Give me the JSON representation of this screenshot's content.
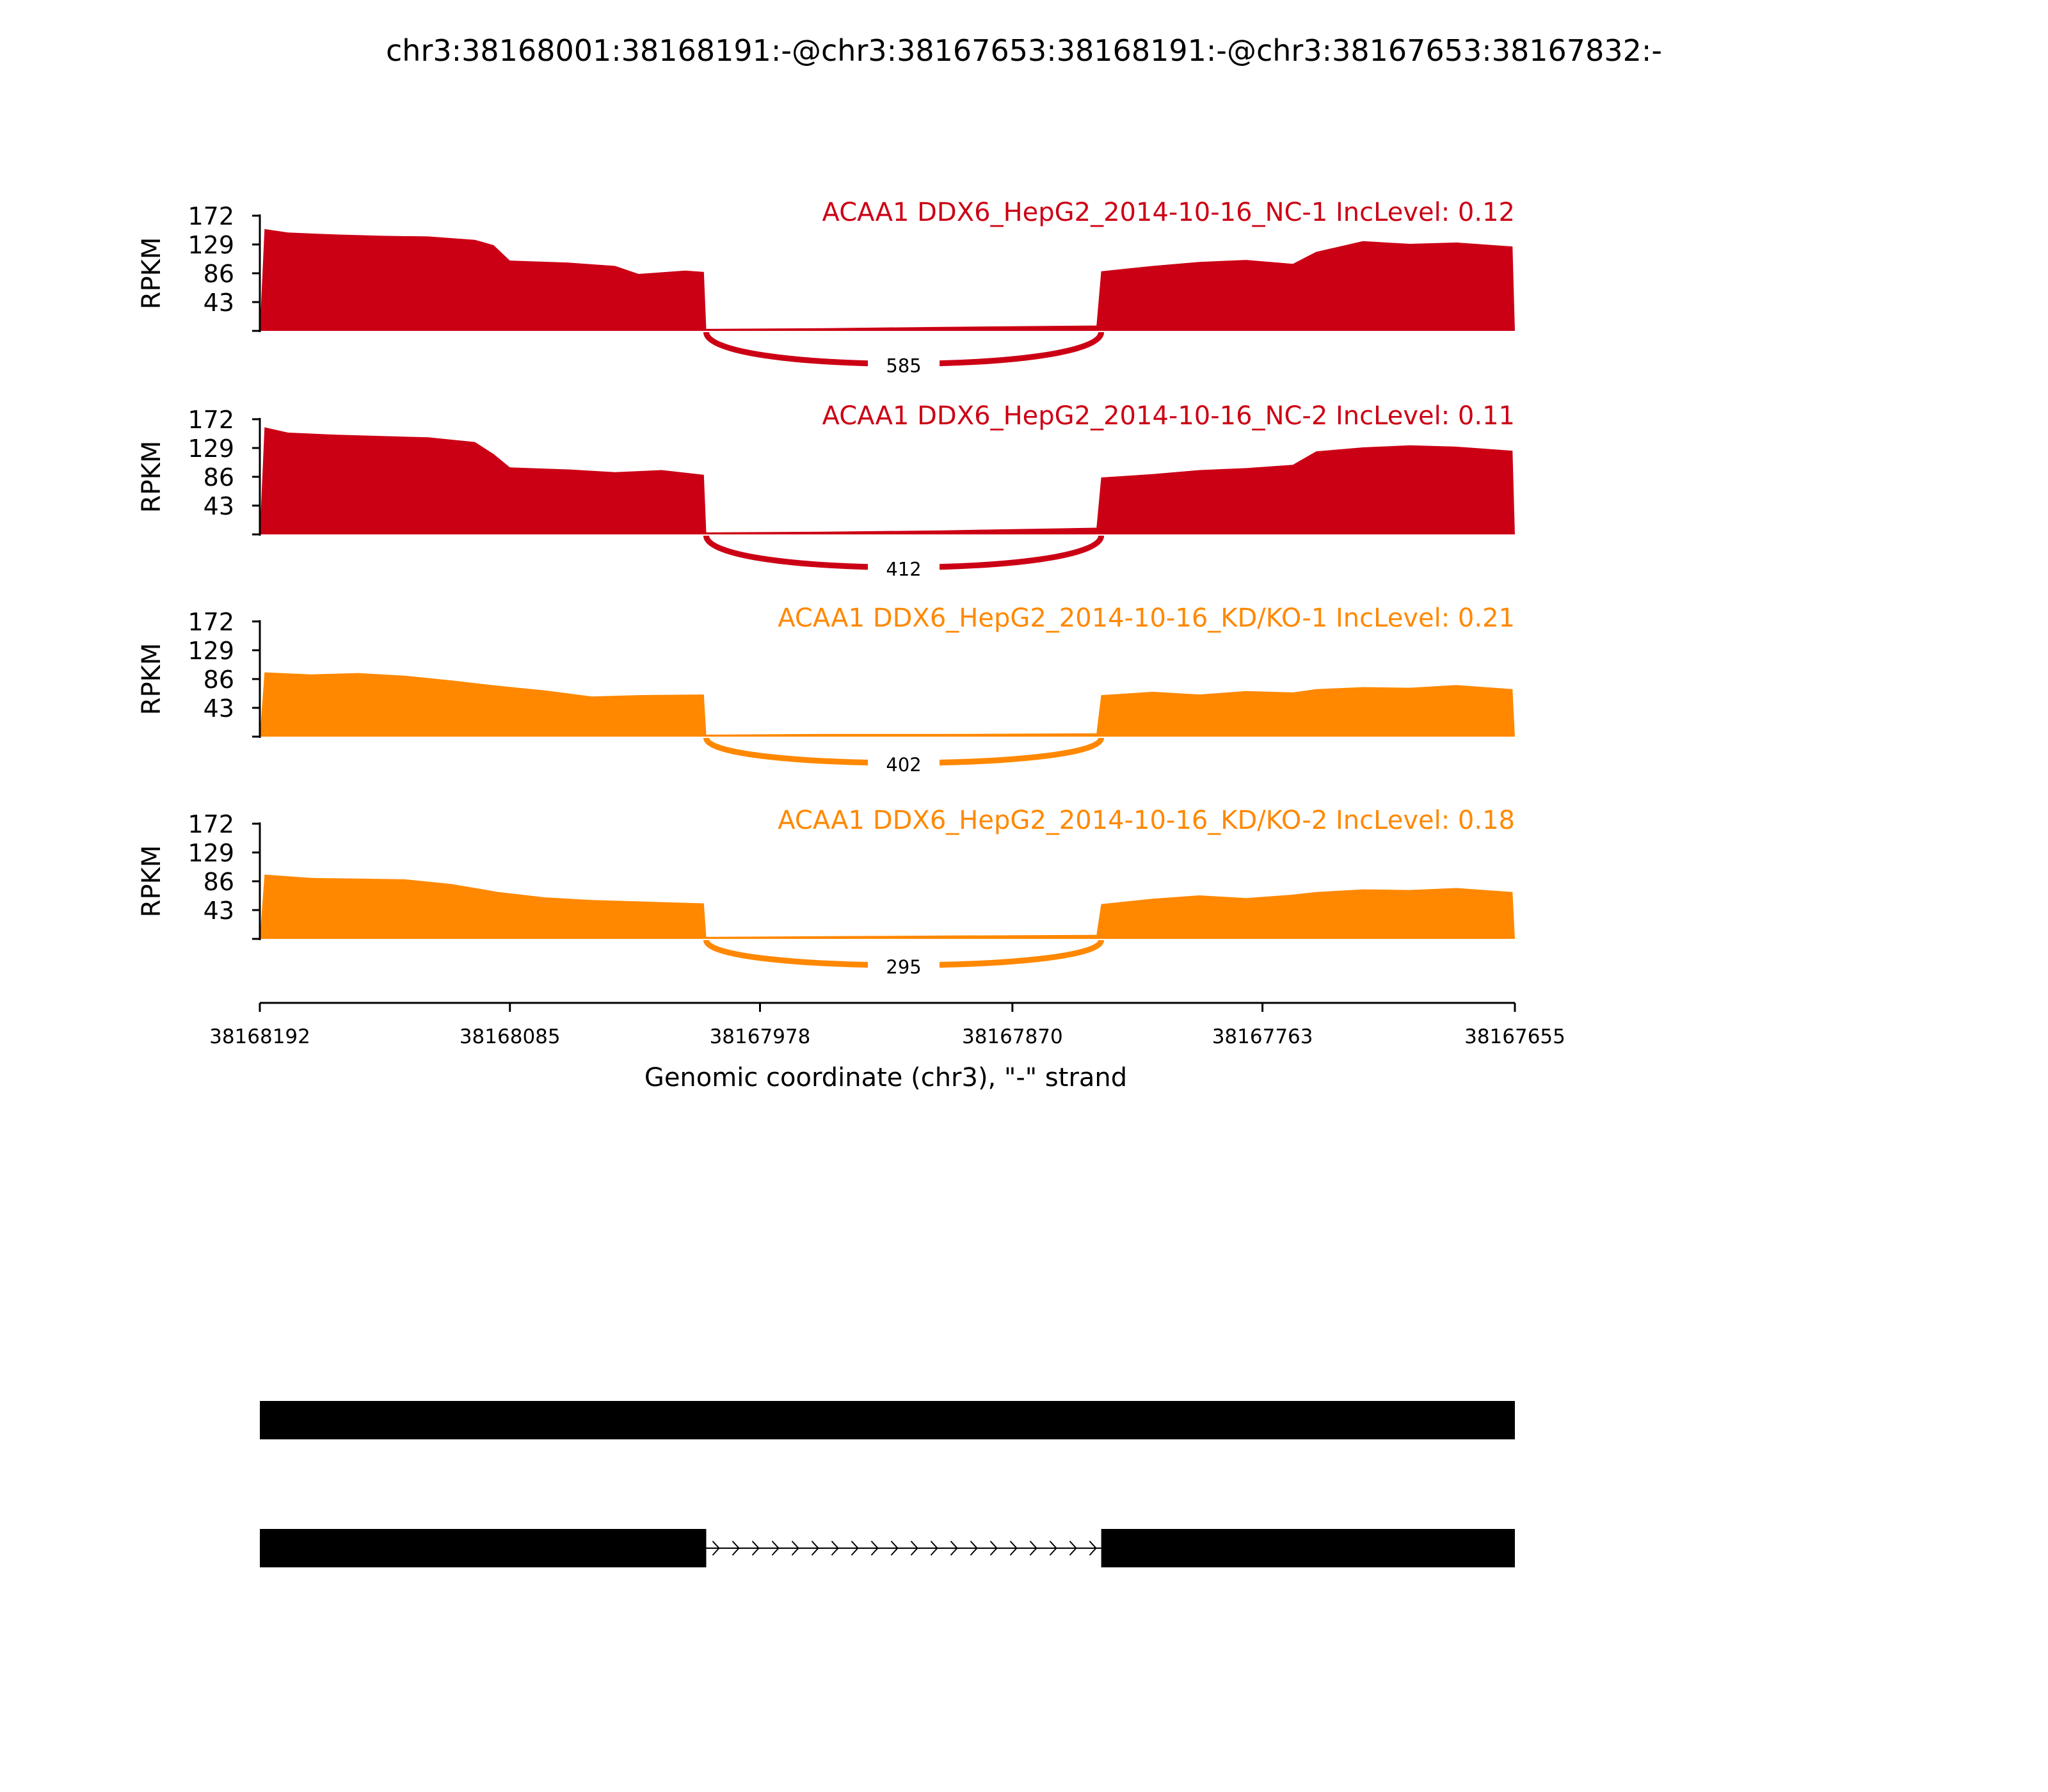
{
  "title": "chr3:38168001:38168191:-@chr3:38167653:38168191:-@chr3:38167653:38167832:-",
  "chart_data": {
    "type": "area",
    "title": "chr3:38168001:38168191:-@chr3:38167653:38168191:-@chr3:38167653:38167832:-",
    "xlabel": "Genomic coordinate (chr3), \"-\" strand",
    "ylabel": "RPKM",
    "x_ticks": [
      "38168192",
      "38168085",
      "38167978",
      "38167870",
      "38167763",
      "38167655"
    ],
    "xlim": [
      38168192,
      38167655
    ],
    "y_ticks": [
      "172",
      "129",
      "86",
      "43"
    ],
    "ylim": [
      0,
      172
    ],
    "tracks": [
      {
        "name": "ACAA1 DDX6_HepG2_2014-10-16_NC-1 IncLevel: 0.12",
        "color": "#cc0015",
        "junction_count": "585",
        "profile": [
          {
            "x": 38168192,
            "y": 0
          },
          {
            "x": 38168190,
            "y": 152
          },
          {
            "x": 38168180,
            "y": 147
          },
          {
            "x": 38168160,
            "y": 144
          },
          {
            "x": 38168140,
            "y": 142
          },
          {
            "x": 38168120,
            "y": 141
          },
          {
            "x": 38168100,
            "y": 136
          },
          {
            "x": 38168092,
            "y": 128
          },
          {
            "x": 38168085,
            "y": 105
          },
          {
            "x": 38168060,
            "y": 102
          },
          {
            "x": 38168040,
            "y": 97
          },
          {
            "x": 38168030,
            "y": 85
          },
          {
            "x": 38168010,
            "y": 90
          },
          {
            "x": 38168002,
            "y": 88
          },
          {
            "x": 38168001,
            "y": 3
          },
          {
            "x": 38167950,
            "y": 4
          },
          {
            "x": 38167900,
            "y": 6
          },
          {
            "x": 38167834,
            "y": 8
          },
          {
            "x": 38167832,
            "y": 89
          },
          {
            "x": 38167810,
            "y": 97
          },
          {
            "x": 38167790,
            "y": 103
          },
          {
            "x": 38167770,
            "y": 106
          },
          {
            "x": 38167750,
            "y": 100
          },
          {
            "x": 38167740,
            "y": 118
          },
          {
            "x": 38167720,
            "y": 134
          },
          {
            "x": 38167700,
            "y": 130
          },
          {
            "x": 38167680,
            "y": 132
          },
          {
            "x": 38167656,
            "y": 126
          },
          {
            "x": 38167655,
            "y": 0
          }
        ]
      },
      {
        "name": "ACAA1 DDX6_HepG2_2014-10-16_NC-2 IncLevel: 0.11",
        "color": "#cc0015",
        "junction_count": "412",
        "profile": [
          {
            "x": 38168192,
            "y": 0
          },
          {
            "x": 38168190,
            "y": 160
          },
          {
            "x": 38168180,
            "y": 152
          },
          {
            "x": 38168160,
            "y": 149
          },
          {
            "x": 38168140,
            "y": 147
          },
          {
            "x": 38168120,
            "y": 145
          },
          {
            "x": 38168100,
            "y": 138
          },
          {
            "x": 38168092,
            "y": 120
          },
          {
            "x": 38168085,
            "y": 100
          },
          {
            "x": 38168060,
            "y": 97
          },
          {
            "x": 38168040,
            "y": 93
          },
          {
            "x": 38168020,
            "y": 96
          },
          {
            "x": 38168002,
            "y": 89
          },
          {
            "x": 38168001,
            "y": 3
          },
          {
            "x": 38167950,
            "y": 4
          },
          {
            "x": 38167900,
            "y": 6
          },
          {
            "x": 38167834,
            "y": 10
          },
          {
            "x": 38167832,
            "y": 85
          },
          {
            "x": 38167810,
            "y": 90
          },
          {
            "x": 38167790,
            "y": 96
          },
          {
            "x": 38167770,
            "y": 99
          },
          {
            "x": 38167750,
            "y": 104
          },
          {
            "x": 38167740,
            "y": 124
          },
          {
            "x": 38167720,
            "y": 130
          },
          {
            "x": 38167700,
            "y": 133
          },
          {
            "x": 38167680,
            "y": 131
          },
          {
            "x": 38167656,
            "y": 125
          },
          {
            "x": 38167655,
            "y": 0
          }
        ]
      },
      {
        "name": "ACAA1 DDX6_HepG2_2014-10-16_KD/KO-1 IncLevel: 0.21",
        "color": "#ff8800",
        "junction_count": "402",
        "profile": [
          {
            "x": 38168192,
            "y": 0
          },
          {
            "x": 38168190,
            "y": 96
          },
          {
            "x": 38168170,
            "y": 93
          },
          {
            "x": 38168150,
            "y": 95
          },
          {
            "x": 38168130,
            "y": 91
          },
          {
            "x": 38168110,
            "y": 84
          },
          {
            "x": 38168090,
            "y": 76
          },
          {
            "x": 38168070,
            "y": 69
          },
          {
            "x": 38168050,
            "y": 60
          },
          {
            "x": 38168030,
            "y": 62
          },
          {
            "x": 38168002,
            "y": 63
          },
          {
            "x": 38168001,
            "y": 3
          },
          {
            "x": 38167950,
            "y": 4
          },
          {
            "x": 38167900,
            "y": 4
          },
          {
            "x": 38167834,
            "y": 5
          },
          {
            "x": 38167832,
            "y": 62
          },
          {
            "x": 38167810,
            "y": 67
          },
          {
            "x": 38167790,
            "y": 63
          },
          {
            "x": 38167770,
            "y": 68
          },
          {
            "x": 38167750,
            "y": 66
          },
          {
            "x": 38167740,
            "y": 71
          },
          {
            "x": 38167720,
            "y": 74
          },
          {
            "x": 38167700,
            "y": 73
          },
          {
            "x": 38167680,
            "y": 77
          },
          {
            "x": 38167656,
            "y": 71
          },
          {
            "x": 38167655,
            "y": 0
          }
        ]
      },
      {
        "name": "ACAA1 DDX6_HepG2_2014-10-16_KD/KO-2 IncLevel: 0.18",
        "color": "#ff8800",
        "junction_count": "295",
        "profile": [
          {
            "x": 38168192,
            "y": 0
          },
          {
            "x": 38168190,
            "y": 96
          },
          {
            "x": 38168170,
            "y": 91
          },
          {
            "x": 38168150,
            "y": 90
          },
          {
            "x": 38168130,
            "y": 89
          },
          {
            "x": 38168110,
            "y": 82
          },
          {
            "x": 38168090,
            "y": 70
          },
          {
            "x": 38168070,
            "y": 62
          },
          {
            "x": 38168050,
            "y": 58
          },
          {
            "x": 38168030,
            "y": 56
          },
          {
            "x": 38168002,
            "y": 53
          },
          {
            "x": 38168001,
            "y": 3
          },
          {
            "x": 38167950,
            "y": 4
          },
          {
            "x": 38167900,
            "y": 5
          },
          {
            "x": 38167834,
            "y": 6
          },
          {
            "x": 38167832,
            "y": 52
          },
          {
            "x": 38167810,
            "y": 60
          },
          {
            "x": 38167790,
            "y": 65
          },
          {
            "x": 38167770,
            "y": 61
          },
          {
            "x": 38167750,
            "y": 66
          },
          {
            "x": 38167740,
            "y": 70
          },
          {
            "x": 38167720,
            "y": 74
          },
          {
            "x": 38167700,
            "y": 73
          },
          {
            "x": 38167680,
            "y": 76
          },
          {
            "x": 38167656,
            "y": 70
          },
          {
            "x": 38167655,
            "y": 0
          }
        ]
      }
    ],
    "junction": {
      "start": 38168001,
      "end": 38167832
    },
    "isoforms": [
      {
        "exons": [
          [
            38168192,
            38167655
          ]
        ]
      },
      {
        "exons": [
          [
            38168192,
            38168001
          ],
          [
            38167832,
            38167655
          ]
        ]
      }
    ]
  }
}
